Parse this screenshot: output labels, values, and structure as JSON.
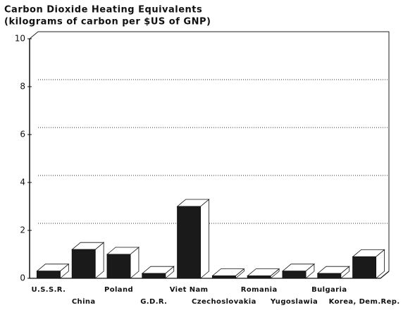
{
  "chart_data": {
    "type": "bar3d",
    "title": "Carbon Dioxide Heating Equivalents",
    "subtitle": "(kilograms of carbon per $US of GNP)",
    "categories": [
      "U.S.S.R.",
      "China",
      "Poland",
      "G.D.R.",
      "Viet Nam",
      "Czechoslovakia",
      "Romania",
      "Yugoslawia",
      "Bulgaria",
      "Korea, Dem.Rep."
    ],
    "values": [
      0.3,
      1.2,
      1.0,
      0.2,
      3.0,
      0.1,
      0.1,
      0.3,
      0.2,
      0.9
    ],
    "color": "#1a1a1a",
    "ylim": [
      0,
      10
    ],
    "yticks": [
      0,
      2,
      4,
      6,
      8,
      10
    ],
    "grid": true
  }
}
